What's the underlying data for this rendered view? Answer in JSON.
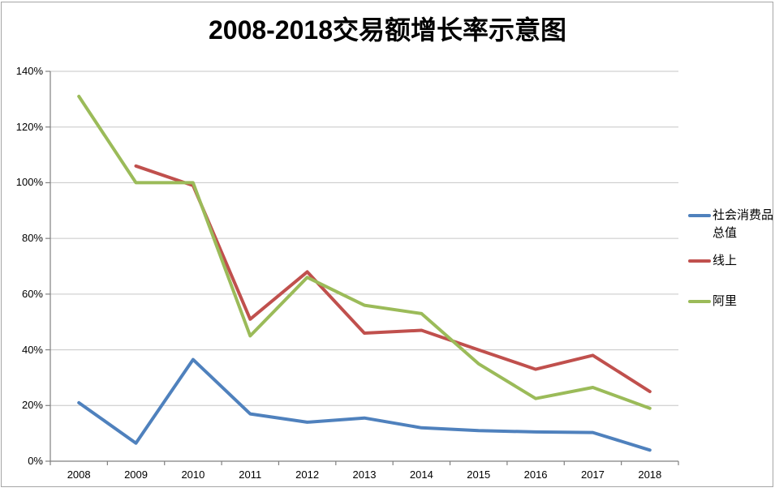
{
  "chart_data": {
    "type": "line",
    "title": "2008-2018交易额增长率示意图",
    "categories": [
      "2008",
      "2009",
      "2010",
      "2011",
      "2012",
      "2013",
      "2014",
      "2015",
      "2016",
      "2017",
      "2018"
    ],
    "series": [
      {
        "name": "社会消费品总值",
        "color": "#4F81BD",
        "values": [
          21,
          6.5,
          36.5,
          17,
          14,
          15.5,
          12,
          11,
          10.5,
          10.3,
          4
        ]
      },
      {
        "name": "线上",
        "color": "#C0504D",
        "values": [
          null,
          106,
          99,
          51,
          68,
          46,
          47,
          40,
          33,
          38,
          25
        ]
      },
      {
        "name": "阿里",
        "color": "#9BBB59",
        "values": [
          131,
          100,
          100,
          45,
          66,
          56,
          53,
          35,
          22.5,
          26.5,
          19
        ]
      }
    ],
    "y_axis": {
      "min": 0,
      "max": 140,
      "step": 20,
      "tick_labels": [
        "0%",
        "20%",
        "40%",
        "60%",
        "80%",
        "100%",
        "120%",
        "140%"
      ]
    },
    "xlabel": "",
    "ylabel": "",
    "grid": true,
    "legend_position": "right",
    "colors": {
      "gridline": "#C6C6C6",
      "axis": "#808080",
      "border": "#A6A6A6",
      "text": "#000000"
    }
  }
}
